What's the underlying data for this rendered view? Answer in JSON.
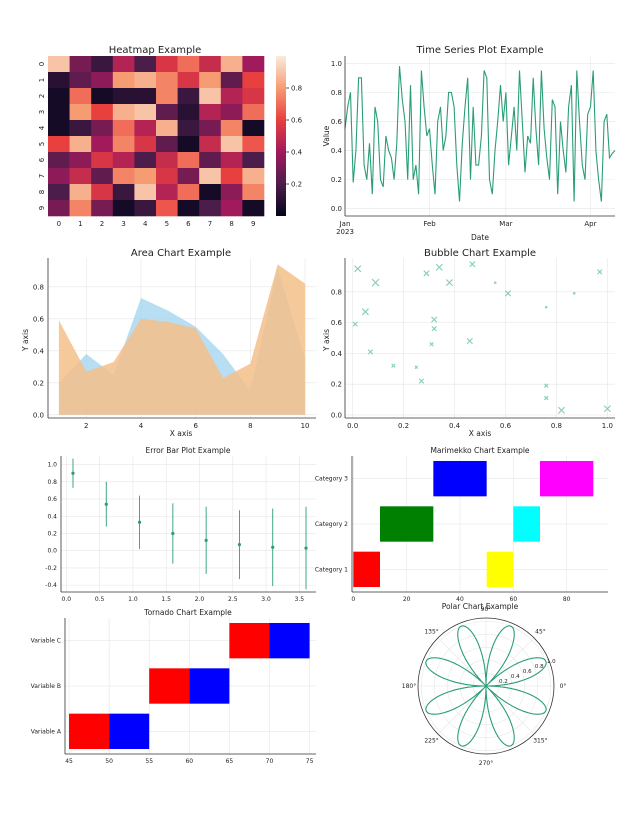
{
  "chart_data": [
    {
      "type": "heatmap",
      "title": "Heatmap Example",
      "rows": [
        "0",
        "1",
        "2",
        "3",
        "4",
        "5",
        "6",
        "7",
        "8",
        "9"
      ],
      "cols": [
        "0",
        "1",
        "2",
        "3",
        "4",
        "5",
        "6",
        "7",
        "8",
        "9"
      ],
      "values": [
        [
          0.9,
          0.3,
          0.15,
          0.45,
          0.2,
          0.55,
          0.7,
          0.5,
          0.85,
          0.4
        ],
        [
          0.1,
          0.25,
          0.35,
          0.8,
          0.85,
          0.75,
          0.55,
          0.8,
          0.25,
          0.6
        ],
        [
          0.05,
          0.7,
          0.05,
          0.1,
          0.1,
          0.75,
          0.15,
          0.9,
          0.45,
          0.55
        ],
        [
          0.05,
          0.8,
          0.6,
          0.85,
          0.9,
          0.25,
          0.1,
          0.45,
          0.35,
          0.7
        ],
        [
          0.05,
          0.15,
          0.3,
          0.7,
          0.45,
          0.85,
          0.15,
          0.3,
          0.75,
          0.05
        ],
        [
          0.6,
          0.85,
          0.4,
          0.75,
          0.55,
          0.25,
          0.05,
          0.5,
          0.9,
          0.65
        ],
        [
          0.25,
          0.35,
          0.55,
          0.45,
          0.2,
          0.5,
          0.7,
          0.25,
          0.45,
          0.2
        ],
        [
          0.35,
          0.5,
          0.25,
          0.75,
          0.8,
          0.55,
          0.3,
          0.9,
          0.6,
          0.85
        ],
        [
          0.2,
          0.85,
          0.55,
          0.15,
          0.9,
          0.45,
          0.7,
          0.05,
          0.35,
          0.75
        ],
        [
          0.3,
          0.75,
          0.3,
          0.05,
          0.15,
          0.65,
          0.05,
          0.2,
          0.4,
          0.05
        ]
      ],
      "colorbar_ticks": [
        0.2,
        0.4,
        0.6,
        0.8
      ],
      "colorbar_range": [
        0.0,
        1.0
      ]
    },
    {
      "type": "line",
      "title": "Time Series Plot Example",
      "xlabel": "Date",
      "ylabel": "Value",
      "x_ticks": [
        "Jan\n2023",
        "Feb",
        "Mar",
        "Apr"
      ],
      "x_tick_days": [
        0,
        31,
        59,
        90
      ],
      "y_ticks": [
        "0.0",
        "0.2",
        "0.4",
        "0.6",
        "0.8",
        "1.0"
      ],
      "ylim": [
        -0.05,
        1.05
      ],
      "x_range_days": [
        0,
        99
      ],
      "color": "#2a9d78",
      "values": [
        0.55,
        0.7,
        0.8,
        0.18,
        0.4,
        0.9,
        0.9,
        0.3,
        0.2,
        0.45,
        0.1,
        0.7,
        0.6,
        0.2,
        0.15,
        0.5,
        0.4,
        0.35,
        0.2,
        0.45,
        0.98,
        0.75,
        0.6,
        0.2,
        0.85,
        0.2,
        0.3,
        0.1,
        0.95,
        0.7,
        0.5,
        0.55,
        0.3,
        0.1,
        0.6,
        0.7,
        0.4,
        0.5,
        0.8,
        0.8,
        0.7,
        0.3,
        0.05,
        0.45,
        0.7,
        0.9,
        0.2,
        0.7,
        0.3,
        0.3,
        0.5,
        0.95,
        0.9,
        0.2,
        0.1,
        0.4,
        0.6,
        0.85,
        0.6,
        0.8,
        0.3,
        0.5,
        0.7,
        0.4,
        0.95,
        0.6,
        0.25,
        0.5,
        0.45,
        0.9,
        0.55,
        0.3,
        0.95,
        0.55,
        0.35,
        0.2,
        0.75,
        0.7,
        0.1,
        0.6,
        0.4,
        0.25,
        0.7,
        0.85,
        0.05,
        0.95,
        0.6,
        0.3,
        0.2,
        0.65,
        0.7,
        0.95,
        0.4,
        0.2,
        0.05,
        0.6,
        0.65,
        0.35,
        0.38,
        0.4
      ]
    },
    {
      "type": "area",
      "title": "Area Chart Example",
      "xlabel": "X axis",
      "ylabel": "Y axis",
      "x": [
        1,
        2,
        3,
        4,
        5,
        6,
        7,
        8,
        9,
        10
      ],
      "xlim": [
        0.6,
        10.4
      ],
      "ylim": [
        -0.02,
        0.98
      ],
      "x_ticks": [
        2,
        4,
        6,
        8,
        10
      ],
      "y_ticks": [
        "0.0",
        "0.2",
        "0.4",
        "0.6",
        "0.8"
      ],
      "series": [
        {
          "values": [
            0.2,
            0.38,
            0.25,
            0.73,
            0.65,
            0.55,
            0.38,
            0.15,
            0.92,
            0.35
          ],
          "color": "#9fd3ef"
        },
        {
          "values": [
            0.59,
            0.27,
            0.33,
            0.6,
            0.58,
            0.54,
            0.23,
            0.32,
            0.94,
            0.82
          ],
          "color": "#f5bf8a"
        }
      ]
    },
    {
      "type": "scatter",
      "title": "Bubble Chart Example",
      "xlabel": "X axis",
      "ylabel": "Y axis",
      "xlim": [
        -0.03,
        1.03
      ],
      "ylim": [
        -0.02,
        1.02
      ],
      "x_ticks": [
        "0.0",
        "0.2",
        "0.4",
        "0.6",
        "0.8",
        "1.0"
      ],
      "y_ticks": [
        "0.0",
        "0.2",
        "0.4",
        "0.6",
        "0.8"
      ],
      "color": "#7fcdbb",
      "points": [
        {
          "x": 0.02,
          "y": 0.95,
          "s": 7
        },
        {
          "x": 0.01,
          "y": 0.59,
          "s": 5
        },
        {
          "x": 0.05,
          "y": 0.67,
          "s": 7
        },
        {
          "x": 0.07,
          "y": 0.41,
          "s": 5
        },
        {
          "x": 0.09,
          "y": 0.86,
          "s": 8
        },
        {
          "x": 0.16,
          "y": 0.32,
          "s": 4
        },
        {
          "x": 0.25,
          "y": 0.31,
          "s": 3
        },
        {
          "x": 0.27,
          "y": 0.22,
          "s": 5
        },
        {
          "x": 0.29,
          "y": 0.92,
          "s": 6
        },
        {
          "x": 0.31,
          "y": 0.46,
          "s": 4
        },
        {
          "x": 0.32,
          "y": 0.56,
          "s": 5
        },
        {
          "x": 0.32,
          "y": 0.62,
          "s": 6
        },
        {
          "x": 0.34,
          "y": 0.96,
          "s": 7
        },
        {
          "x": 0.38,
          "y": 0.86,
          "s": 7
        },
        {
          "x": 0.46,
          "y": 0.48,
          "s": 6
        },
        {
          "x": 0.47,
          "y": 0.98,
          "s": 6
        },
        {
          "x": 0.56,
          "y": 0.86,
          "s": 2
        },
        {
          "x": 0.61,
          "y": 0.79,
          "s": 6
        },
        {
          "x": 0.76,
          "y": 0.7,
          "s": 1
        },
        {
          "x": 0.76,
          "y": 0.19,
          "s": 4
        },
        {
          "x": 0.76,
          "y": 0.11,
          "s": 4
        },
        {
          "x": 0.82,
          "y": 0.03,
          "s": 7
        },
        {
          "x": 0.87,
          "y": 0.79,
          "s": 2
        },
        {
          "x": 0.97,
          "y": 0.93,
          "s": 5
        },
        {
          "x": 1.0,
          "y": 0.04,
          "s": 7
        }
      ]
    },
    {
      "type": "scatter",
      "subtype": "errorbar",
      "title": "Error Bar Plot Example",
      "xlim": [
        -0.08,
        3.75
      ],
      "ylim": [
        -0.48,
        1.1
      ],
      "x_ticks": [
        "0.0",
        "0.5",
        "1.0",
        "1.5",
        "2.0",
        "2.5",
        "3.0",
        "3.5"
      ],
      "y_ticks": [
        "-0.4",
        "-0.2",
        "0.0",
        "0.2",
        "0.4",
        "0.6",
        "0.8",
        "1.0"
      ],
      "color": "#2a9d78",
      "points": [
        {
          "x": 0.1,
          "y": 0.9,
          "err": 0.17
        },
        {
          "x": 0.6,
          "y": 0.54,
          "err": 0.26
        },
        {
          "x": 1.1,
          "y": 0.33,
          "err": 0.31
        },
        {
          "x": 1.6,
          "y": 0.2,
          "err": 0.35
        },
        {
          "x": 2.1,
          "y": 0.12,
          "err": 0.39
        },
        {
          "x": 2.6,
          "y": 0.07,
          "err": 0.4
        },
        {
          "x": 3.1,
          "y": 0.04,
          "err": 0.45
        },
        {
          "x": 3.6,
          "y": 0.03,
          "err": 0.48
        }
      ]
    },
    {
      "type": "bar",
      "subtype": "marimekko",
      "title": "Marimekko Chart Example",
      "xlim": [
        -0.5,
        95.5
      ],
      "categories": [
        "Category 1",
        "Category 2",
        "Category 3"
      ],
      "x_ticks": [
        "0",
        "20",
        "40",
        "60",
        "80"
      ],
      "bars": [
        {
          "category": "Category 1",
          "start": 0,
          "width": 10,
          "color": "#ff0000"
        },
        {
          "category": "Category 1",
          "start": 50,
          "width": 10,
          "color": "#ffff00"
        },
        {
          "category": "Category 2",
          "start": 10,
          "width": 20,
          "color": "#008000"
        },
        {
          "category": "Category 2",
          "start": 60,
          "width": 10,
          "color": "#00ffff"
        },
        {
          "category": "Category 3",
          "start": 30,
          "width": 20,
          "color": "#0000ff"
        },
        {
          "category": "Category 3",
          "start": 70,
          "width": 20,
          "color": "#ff00ff"
        }
      ]
    },
    {
      "type": "bar",
      "subtype": "tornado",
      "title": "Tornado Chart Example",
      "xlim": [
        44.5,
        75.8
      ],
      "categories": [
        "Variable A",
        "Variable B",
        "Variable C"
      ],
      "x_ticks": [
        "45",
        "50",
        "55",
        "60",
        "65",
        "70",
        "75"
      ],
      "bars": [
        {
          "category": "Variable A",
          "start": 45,
          "end": 50,
          "color": "#ff0000"
        },
        {
          "category": "Variable A",
          "start": 50,
          "end": 55,
          "color": "#0000ff"
        },
        {
          "category": "Variable B",
          "start": 55,
          "end": 60,
          "color": "#ff0000"
        },
        {
          "category": "Variable B",
          "start": 60,
          "end": 65,
          "color": "#0000ff"
        },
        {
          "category": "Variable C",
          "start": 65,
          "end": 70,
          "color": "#ff0000"
        },
        {
          "category": "Variable C",
          "start": 70,
          "end": 75,
          "color": "#0000ff"
        }
      ]
    },
    {
      "type": "line",
      "subtype": "polar",
      "title": "Polar Chart Example",
      "angle_ticks": [
        "0°",
        "45°",
        "90°",
        "135°",
        "180°",
        "225°",
        "270°",
        "315°"
      ],
      "radial_ticks": [
        "0.2",
        "0.4",
        "0.6",
        "0.8",
        "1.0"
      ],
      "rmax": 1.05,
      "petals": 8,
      "color": "#2a9d78"
    }
  ]
}
